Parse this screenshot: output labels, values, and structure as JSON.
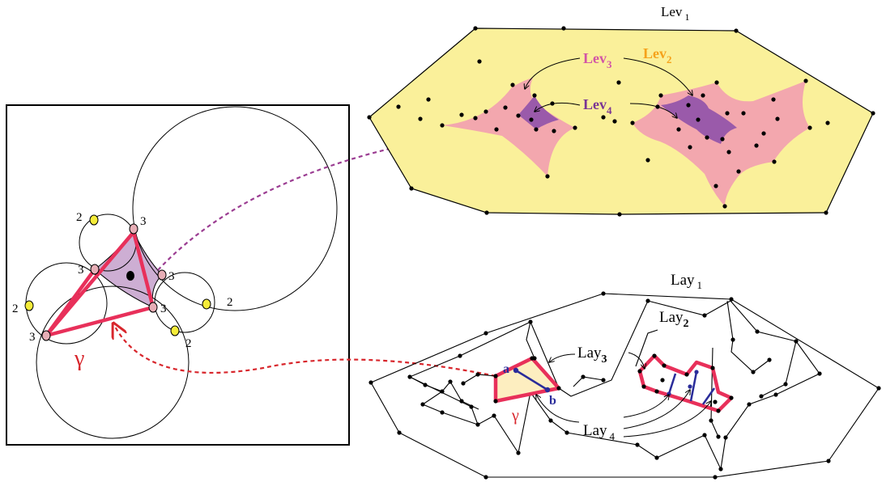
{
  "colors": {
    "yellow_region": "#faf09a",
    "pink_region": "#f3a7ae",
    "purple_region": "#9a5aaa",
    "lilac_region": "#cdaed3",
    "red_edge": "#e8305a",
    "blue_edge": "#2a2c9a",
    "dashed_purple": "#9b3d92",
    "dashed_red": "#d8262c",
    "vertex_yellow": "#f5ec3a",
    "vertex_pink": "#e7aeb6",
    "lev3_magenta": "#d255a6",
    "lev2_orange": "#f5a21b",
    "lev4_purple": "#7a3594"
  },
  "left_panel": {
    "vertex_counts": {
      "top": "3",
      "top_yellow": "2",
      "left_mid": "3",
      "left_yellow": "2",
      "bottom_left": "3",
      "right_upper": "3",
      "right_lower": "3",
      "right_yellow": "2",
      "bottom_yellow": "2"
    },
    "gamma": "γ"
  },
  "levels_diagram": {
    "lev1": {
      "base": "Lev",
      "sub": "1"
    },
    "lev2": {
      "base": "Lev",
      "sub": "2"
    },
    "lev3": {
      "base": "Lev",
      "sub": "3"
    },
    "lev4": {
      "base": "Lev",
      "sub": "4"
    }
  },
  "layers_diagram": {
    "lay1": {
      "base": "Lay",
      "sub": "1"
    },
    "lay2": {
      "base": "Lay",
      "sub": "2"
    },
    "lay3": {
      "base": "Lay",
      "sub": "3"
    },
    "lay4": {
      "base": "Lay",
      "sub": "4"
    },
    "vertex_a": "a",
    "vertex_b": "b",
    "gamma": "γ"
  }
}
